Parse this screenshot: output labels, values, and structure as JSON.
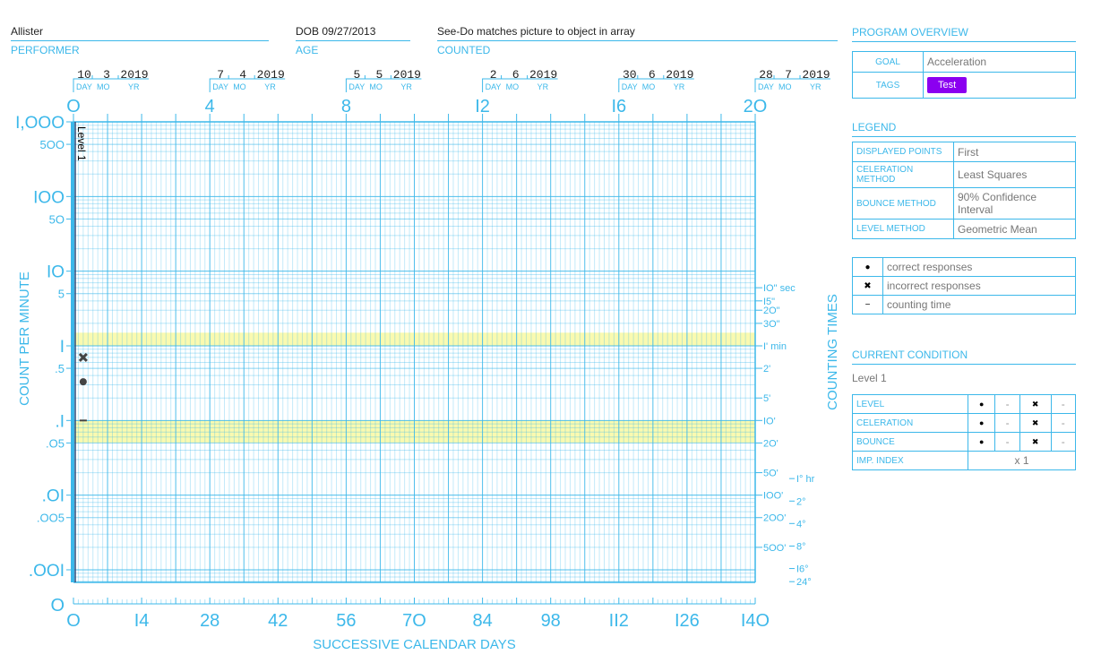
{
  "header": {
    "performer": {
      "value": "Allister",
      "label": "PERFORMER"
    },
    "age": {
      "value": "DOB 09/27/2013",
      "label": "AGE"
    },
    "counted": {
      "value": "See-Do matches picture to object in array",
      "label": "COUNTED"
    }
  },
  "colors": {
    "grid": "#3cb8ea",
    "band": "#fafab0",
    "tag": "#8b00f0",
    "marker": "#444444"
  },
  "chart_data": {
    "type": "scatter",
    "xlabel": "SUCCESSIVE CALENDAR DAYS",
    "ylabel": "COUNT PER MINUTE",
    "y2label": "COUNTING TIMES",
    "yscale": "log",
    "xlim": [
      0,
      140
    ],
    "ylim": [
      0.001,
      1000
    ],
    "grid": true,
    "x_ticks": [
      {
        "v": 0,
        "t": "O"
      },
      {
        "v": 14,
        "t": "I4"
      },
      {
        "v": 28,
        "t": "28"
      },
      {
        "v": 42,
        "t": "42"
      },
      {
        "v": 56,
        "t": "56"
      },
      {
        "v": 70,
        "t": "7O"
      },
      {
        "v": 84,
        "t": "84"
      },
      {
        "v": 98,
        "t": "98"
      },
      {
        "v": 112,
        "t": "II2"
      },
      {
        "v": 126,
        "t": "I26"
      },
      {
        "v": 140,
        "t": "I4O"
      }
    ],
    "zero_label": "O",
    "week_ticks": [
      {
        "v": 0,
        "t": "O"
      },
      {
        "v": 4,
        "t": "4"
      },
      {
        "v": 8,
        "t": "8"
      },
      {
        "v": 12,
        "t": "I2"
      },
      {
        "v": 16,
        "t": "I6"
      },
      {
        "v": 20,
        "t": "2O"
      }
    ],
    "date_labels": [
      {
        "week": 0,
        "day": "10",
        "mo": "3",
        "yr": "2019"
      },
      {
        "week": 4,
        "day": "7",
        "mo": "4",
        "yr": "2019"
      },
      {
        "week": 8,
        "day": "5",
        "mo": "5",
        "yr": "2019"
      },
      {
        "week": 12,
        "day": "2",
        "mo": "6",
        "yr": "2019"
      },
      {
        "week": 16,
        "day": "30",
        "mo": "6",
        "yr": "2019"
      },
      {
        "week": 20,
        "day": "28",
        "mo": "7",
        "yr": "2019"
      }
    ],
    "date_sub": {
      "day": "DAY",
      "mo": "MO",
      "yr": "YR"
    },
    "y_ticks": [
      {
        "v": 1000,
        "t": "I,OOO",
        "big": true
      },
      {
        "v": 500,
        "t": "5OO"
      },
      {
        "v": 100,
        "t": "IOO",
        "big": true
      },
      {
        "v": 50,
        "t": "5O"
      },
      {
        "v": 10,
        "t": "IO",
        "big": true
      },
      {
        "v": 5,
        "t": "5"
      },
      {
        "v": 1,
        "t": "I",
        "big": true
      },
      {
        "v": 0.5,
        "t": ".5"
      },
      {
        "v": 0.1,
        "t": ".I",
        "big": true
      },
      {
        "v": 0.05,
        "t": ".O5"
      },
      {
        "v": 0.01,
        "t": ".OI",
        "big": true
      },
      {
        "v": 0.005,
        "t": ".OO5"
      },
      {
        "v": 0.001,
        "t": ".OOI",
        "big": true
      }
    ],
    "time_ticks": [
      {
        "v": 6,
        "t": "IO\" sec"
      },
      {
        "v": 4,
        "t": "I5\""
      },
      {
        "v": 3,
        "t": "2O\""
      },
      {
        "v": 2,
        "t": "3O\""
      },
      {
        "v": 1,
        "t": "I' min"
      },
      {
        "v": 0.5,
        "t": "2'"
      },
      {
        "v": 0.2,
        "t": "5'"
      },
      {
        "v": 0.1,
        "t": "IO'"
      },
      {
        "v": 0.05,
        "t": "2O'"
      },
      {
        "v": 0.02,
        "t": "5O'"
      },
      {
        "v": 0.01,
        "t": "IOO'"
      },
      {
        "v": 0.005,
        "t": "2OO'"
      },
      {
        "v": 0.002,
        "t": "5OO'"
      }
    ],
    "hour_ticks": [
      {
        "v": 0.01667,
        "t": "I° hr"
      },
      {
        "v": 0.00833,
        "t": "2°"
      },
      {
        "v": 0.00417,
        "t": "4°"
      },
      {
        "v": 0.00208,
        "t": "8°"
      },
      {
        "v": 0.00104,
        "t": "I6°"
      },
      {
        "v": 0.000694,
        "t": "24°"
      }
    ],
    "bands": [
      {
        "from": 1,
        "to": 1.5
      },
      {
        "from": 0.05,
        "to": 0.1
      }
    ],
    "phase_lines": [
      {
        "day": 0,
        "label": "Level 1"
      }
    ],
    "series": [
      {
        "name": "correct responses",
        "marker": "dot",
        "points": [
          {
            "x": 2,
            "y": 0.33
          }
        ]
      },
      {
        "name": "incorrect responses",
        "marker": "x",
        "points": [
          {
            "x": 2,
            "y": 0.7
          }
        ]
      },
      {
        "name": "counting time",
        "marker": "dash",
        "points": [
          {
            "x": 2,
            "y": 0.1
          }
        ]
      }
    ]
  },
  "overview": {
    "title": "PROGRAM OVERVIEW",
    "goal_label": "GOAL",
    "goal": "Acceleration",
    "tags_label": "TAGS",
    "tag": "Test"
  },
  "legend": {
    "title": "LEGEND",
    "rows": [
      {
        "k": "DISPLAYED POINTS",
        "v": "First"
      },
      {
        "k": "CELERATION METHOD",
        "v": "Least Squares"
      },
      {
        "k": "BOUNCE METHOD",
        "v": "90% Confidence Interval"
      },
      {
        "k": "LEVEL METHOD",
        "v": "Geometric Mean"
      }
    ],
    "markers": [
      {
        "sym": "●",
        "label": "correct responses"
      },
      {
        "sym": "✖",
        "label": "incorrect responses"
      },
      {
        "sym": "−",
        "label": "counting time"
      }
    ]
  },
  "condition": {
    "title": "CURRENT CONDITION",
    "name": "Level 1",
    "rows": [
      {
        "k": "LEVEL",
        "a": "●",
        "b": "-",
        "c": "✖",
        "d": "-"
      },
      {
        "k": "CELERATION",
        "a": "●",
        "b": "-",
        "c": "✖",
        "d": "-"
      },
      {
        "k": "BOUNCE",
        "a": "●",
        "b": "-",
        "c": "✖",
        "d": "-"
      }
    ],
    "imp_label": "IMP. INDEX",
    "imp": "x 1"
  }
}
